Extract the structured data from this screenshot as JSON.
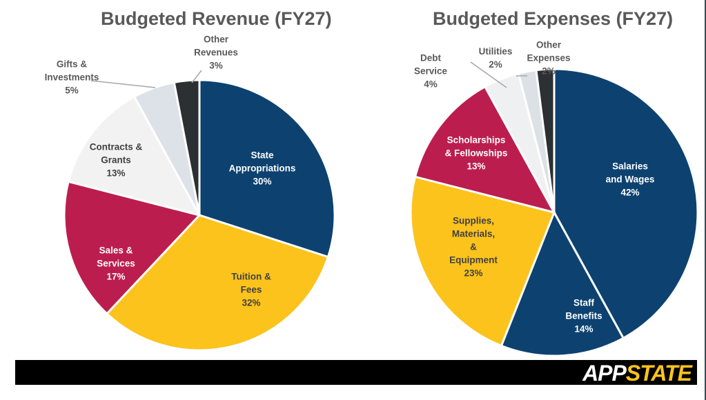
{
  "chart_data": [
    {
      "type": "pie",
      "title": "Budgeted Revenue (FY27)",
      "slices": [
        {
          "label": "State\nAppropriations",
          "value": 30,
          "color": "#0d4270"
        },
        {
          "label": "Tuition &\nFees",
          "value": 32,
          "color": "#fcc31c"
        },
        {
          "label": "Sales &\nServices",
          "value": 17,
          "color": "#bb1e4e"
        },
        {
          "label": "Contracts &\nGrants",
          "value": 13,
          "color": "#f2f2f2"
        },
        {
          "label": "Gifts &\nInvestments",
          "value": 5,
          "color": "#dde2e8"
        },
        {
          "label": "Other\nRevenues",
          "value": 3,
          "color": "#2b3033"
        }
      ]
    },
    {
      "type": "pie",
      "title": "Budgeted Expenses (FY27)",
      "slices": [
        {
          "label": "Salaries\nand Wages",
          "value": 42,
          "color": "#0d4270"
        },
        {
          "label": "Staff\nBenefits",
          "value": 14,
          "color": "#0d4270"
        },
        {
          "label": "Supplies,\nMaterials,\n&\nEquipment",
          "value": 23,
          "color": "#fcc31c"
        },
        {
          "label": "Scholarships\n& Fellowships",
          "value": 13,
          "color": "#bb1e4e"
        },
        {
          "label": "Debt\nService",
          "value": 4,
          "color": "#eef0f2"
        },
        {
          "label": "Utilities",
          "value": 2,
          "color": "#dce1e6"
        },
        {
          "label": "Other\nExpenses",
          "value": 2,
          "color": "#2b3033"
        }
      ]
    }
  ],
  "logo": {
    "part1": "APP",
    "part2": "STATE"
  }
}
